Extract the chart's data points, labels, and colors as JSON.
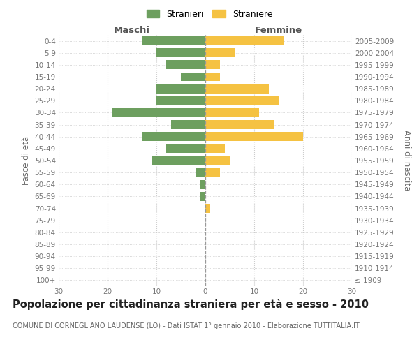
{
  "age_groups": [
    "100+",
    "95-99",
    "90-94",
    "85-89",
    "80-84",
    "75-79",
    "70-74",
    "65-69",
    "60-64",
    "55-59",
    "50-54",
    "45-49",
    "40-44",
    "35-39",
    "30-34",
    "25-29",
    "20-24",
    "15-19",
    "10-14",
    "5-9",
    "0-4"
  ],
  "birth_years": [
    "≤ 1909",
    "1910-1914",
    "1915-1919",
    "1920-1924",
    "1925-1929",
    "1930-1934",
    "1935-1939",
    "1940-1944",
    "1945-1949",
    "1950-1954",
    "1955-1959",
    "1960-1964",
    "1965-1969",
    "1970-1974",
    "1975-1979",
    "1980-1984",
    "1985-1989",
    "1990-1994",
    "1995-1999",
    "2000-2004",
    "2005-2009"
  ],
  "males": [
    0,
    0,
    0,
    0,
    0,
    0,
    0,
    1,
    1,
    2,
    11,
    8,
    13,
    7,
    19,
    10,
    10,
    5,
    8,
    10,
    13
  ],
  "females": [
    0,
    0,
    0,
    0,
    0,
    0,
    1,
    0,
    0,
    3,
    5,
    4,
    20,
    14,
    11,
    15,
    13,
    3,
    3,
    6,
    16
  ],
  "male_color": "#6d9f5f",
  "female_color": "#f5c242",
  "bar_height": 0.75,
  "xlim": 30,
  "title": "Popolazione per cittadinanza straniera per età e sesso - 2010",
  "subtitle": "COMUNE DI CORNEGLIANO LAUDENSE (LO) - Dati ISTAT 1° gennaio 2010 - Elaborazione TUTTITALIA.IT",
  "label_maschi": "Maschi",
  "label_femmine": "Femmine",
  "ylabel_left": "Fasce di età",
  "ylabel_right": "Anni di nascita",
  "legend_male": "Stranieri",
  "legend_female": "Straniere",
  "background_color": "#ffffff",
  "grid_color": "#cccccc",
  "title_fontsize": 10.5,
  "subtitle_fontsize": 7.0,
  "tick_fontsize": 7.5,
  "label_fontsize": 8.5,
  "header_fontsize": 9.5
}
